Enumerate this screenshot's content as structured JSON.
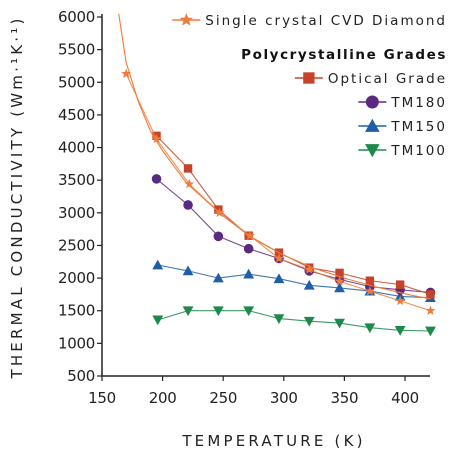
{
  "chart_data": {
    "type": "line",
    "title": "",
    "xlabel": "TEMPERATURE (K)",
    "ylabel": "THERMAL CONDUCTIVITY (Wm·¹K·¹)",
    "xlim": [
      150,
      430
    ],
    "ylim": [
      500,
      6000
    ],
    "xticks": [
      "150",
      "200",
      "250",
      "300",
      "350",
      "400"
    ],
    "yticks": [
      "500",
      "1000",
      "1500",
      "2000",
      "2500",
      "3000",
      "3500",
      "4000",
      "4500",
      "5000",
      "5500",
      "6000"
    ],
    "grid": false,
    "legend_position": "top-right",
    "legend_group_title": "Polycrystalline Grades",
    "series": [
      {
        "name": "Single crystal CVD Diamond",
        "color": "#f07c3a",
        "marker": "star",
        "x": [
          170,
          195,
          222,
          247,
          272,
          296,
          321,
          346,
          371,
          396,
          421
        ],
        "y": [
          5130,
          4130,
          3440,
          3000,
          2650,
          2300,
          2130,
          1950,
          1800,
          1650,
          1500
        ],
        "curve_x": [
          160,
          165,
          170,
          180,
          190,
          200,
          220,
          250,
          275,
          300,
          325,
          350,
          375,
          400,
          421
        ],
        "curve_y": [
          6500,
          5900,
          5300,
          4700,
          4250,
          3950,
          3450,
          2950,
          2600,
          2350,
          2150,
          2000,
          1870,
          1760,
          1680
        ]
      },
      {
        "name": "Optical Grade",
        "color": "#c4432a",
        "marker": "square",
        "x": [
          195,
          221,
          246,
          271,
          296,
          321,
          346,
          371,
          396,
          421
        ],
        "y": [
          4180,
          3680,
          3050,
          2650,
          2390,
          2160,
          2080,
          1960,
          1900,
          1750
        ]
      },
      {
        "name": "TM180",
        "color": "#5a2a82",
        "marker": "circle",
        "x": [
          195,
          221,
          246,
          271,
          296,
          321,
          346,
          371,
          396,
          421
        ],
        "y": [
          3520,
          3120,
          2640,
          2450,
          2300,
          2110,
          1980,
          1870,
          1820,
          1780
        ]
      },
      {
        "name": "TM150",
        "color": "#1f5fa8",
        "marker": "triangle-up",
        "x": [
          196,
          221,
          246,
          271,
          296,
          321,
          346,
          371,
          396,
          421
        ],
        "y": [
          2200,
          2110,
          2000,
          2060,
          1990,
          1890,
          1850,
          1800,
          1720,
          1700
        ]
      },
      {
        "name": "TM100",
        "color": "#1c8a4a",
        "marker": "triangle-down",
        "x": [
          196,
          221,
          246,
          271,
          296,
          321,
          346,
          371,
          396,
          421
        ],
        "y": [
          1360,
          1500,
          1500,
          1500,
          1380,
          1340,
          1310,
          1240,
          1200,
          1190
        ]
      }
    ]
  }
}
